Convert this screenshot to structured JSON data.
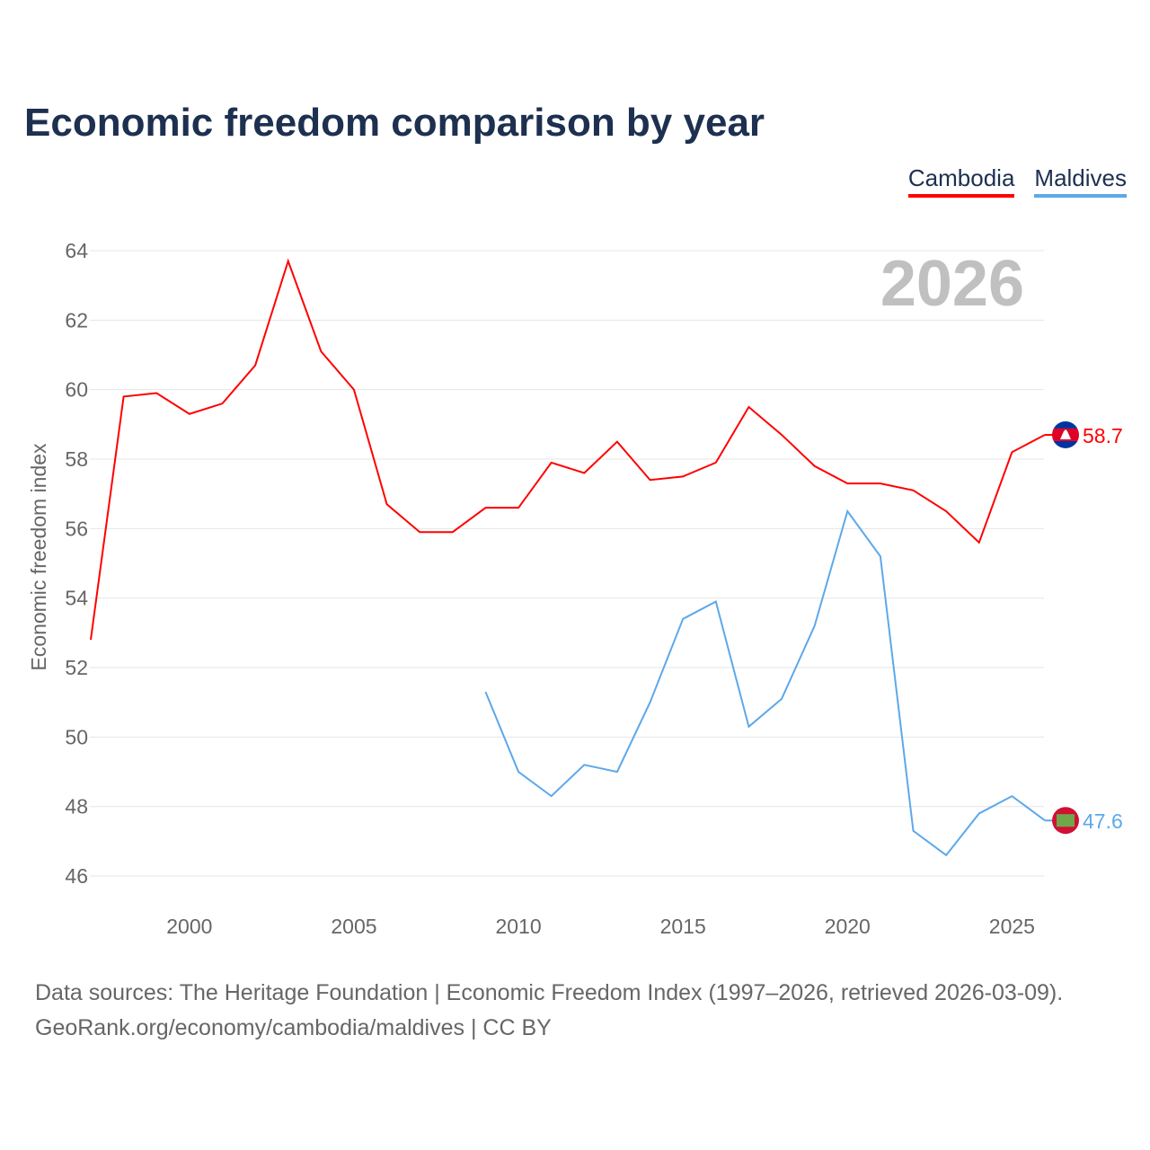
{
  "title": "Economic freedom comparison by year",
  "legend": [
    "Cambodia",
    "Maldives"
  ],
  "source_line1": "Data sources: The Heritage Foundation | Economic Freedom Index (1997–2026, retrieved 2026-03-09).",
  "source_line2": "GeoRank.org/economy/cambodia/maldives | CC BY",
  "chart_data": {
    "type": "line",
    "title": "Economic freedom comparison by year",
    "xlabel": "",
    "ylabel": "Economic freedom index",
    "xlim": [
      1997,
      2026
    ],
    "ylim": [
      45.5,
      64.2
    ],
    "yticks": [
      46,
      48,
      50,
      52,
      54,
      56,
      58,
      60,
      62,
      64
    ],
    "xticks": [
      2000,
      2005,
      2010,
      2015,
      2020,
      2025
    ],
    "year_label": "2026",
    "grid": true,
    "legend_position": "top-right",
    "series": [
      {
        "name": "Cambodia",
        "color": "#ff0000",
        "end_label": "58.7",
        "x": [
          1997,
          1998,
          1999,
          2000,
          2001,
          2002,
          2003,
          2004,
          2005,
          2006,
          2007,
          2008,
          2009,
          2010,
          2011,
          2012,
          2013,
          2014,
          2015,
          2016,
          2017,
          2018,
          2019,
          2020,
          2021,
          2022,
          2023,
          2024,
          2025,
          2026
        ],
        "values": [
          52.8,
          59.8,
          59.9,
          59.3,
          59.6,
          60.7,
          63.7,
          61.1,
          60.0,
          56.7,
          55.9,
          55.9,
          56.6,
          56.6,
          57.9,
          57.6,
          58.5,
          57.4,
          57.5,
          57.9,
          59.5,
          58.7,
          57.8,
          57.3,
          57.3,
          57.1,
          56.5,
          55.6,
          58.2,
          58.7
        ]
      },
      {
        "name": "Maldives",
        "color": "#5da8ea",
        "end_label": "47.6",
        "x": [
          2009,
          2010,
          2011,
          2012,
          2013,
          2014,
          2015,
          2016,
          2017,
          2018,
          2019,
          2020,
          2021,
          2022,
          2023,
          2024,
          2025,
          2026
        ],
        "values": [
          51.3,
          49.0,
          48.3,
          49.2,
          49.0,
          51.0,
          53.4,
          53.9,
          50.3,
          51.1,
          53.2,
          56.5,
          55.2,
          47.3,
          46.6,
          47.8,
          48.3,
          47.6
        ]
      }
    ]
  }
}
